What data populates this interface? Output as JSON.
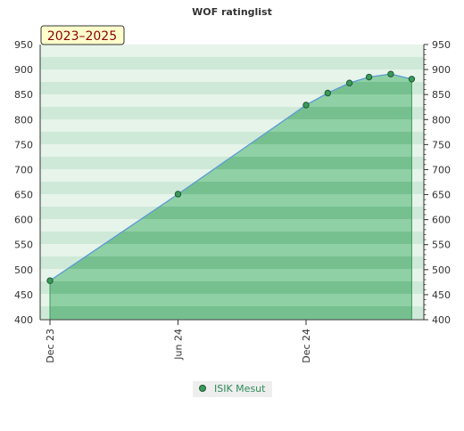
{
  "chart_data": {
    "type": "area",
    "title": "WOF ratinglist",
    "period_label": "2023–2025",
    "x": [
      "2023-12-01",
      "2024-06-01",
      "2024-12-01",
      "2025-01-01",
      "2025-02-01",
      "2025-03-01",
      "2025-04-01",
      "2025-05-01"
    ],
    "series": [
      {
        "name": "ISIK Mesut",
        "values": [
          478,
          651,
          829,
          853,
          873,
          885,
          891,
          881
        ]
      }
    ],
    "x_ticks": [
      "Dec 23",
      "Jun 24",
      "Dec 24"
    ],
    "y_ticks": [
      "400",
      "450",
      "500",
      "550",
      "600",
      "650",
      "700",
      "750",
      "800",
      "850",
      "900",
      "950"
    ],
    "ylim": [
      400,
      950
    ],
    "xlabel": "",
    "ylabel": "",
    "legend_position": "bottom",
    "grid": false,
    "colors": {
      "line": "#5b9bd5",
      "area": "#7fc89a",
      "marker": "#3a9a5a",
      "band_light": "#e8f5ec",
      "band_dark": "#a8d8b8",
      "legend_text": "#2e8b57",
      "badge_bg": "#ffffcc",
      "badge_text": "#8b0000"
    }
  }
}
